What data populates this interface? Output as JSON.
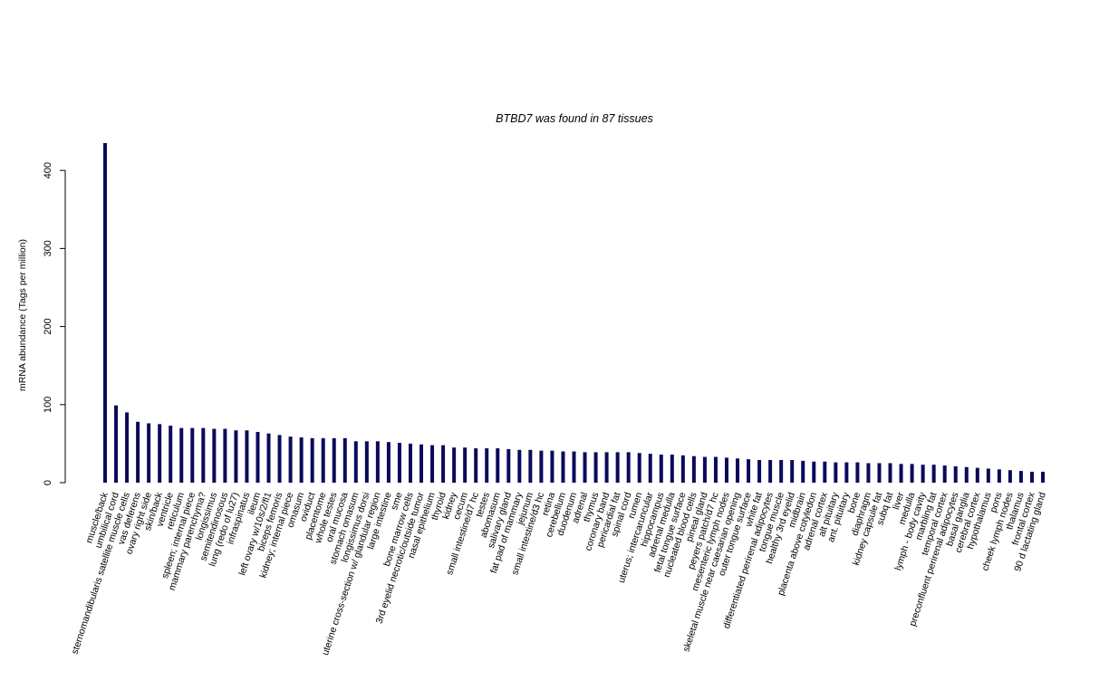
{
  "chart_data": {
    "type": "bar",
    "title": "BTBD7  was found in  87  tissues",
    "xlabel": "",
    "ylabel": "mRNA abundance (Tags per million)",
    "ylim": [
      0,
      435
    ],
    "yticks": [
      0,
      100,
      200,
      300,
      400
    ],
    "grid": false,
    "legend": "none",
    "bar_color": "#0a0a5c",
    "categories": [
      "muscle/back",
      "umbilical cord",
      "sternomandibularis satellite muscle cells",
      "vas deferens",
      "ovary right side",
      "skin/back",
      "ventricle",
      "reticulum",
      "spleen; internal piece",
      "mammary parenchyma?",
      "longissimus",
      "semitendinosous",
      "lung (redo of lu27)",
      "infraspinatus",
      "ileum",
      "left ovary w/10s/2/fl1",
      "biceps femoris",
      "kidney; internal piece",
      "omasum",
      "oviduct",
      "placentome",
      "whole testes",
      "oral mucosa",
      "stomach omasum",
      "longissimus dorsi",
      "uterine cross-section w/ glandular region",
      "large intestine",
      "sme",
      "bone marrow cells",
      "3rd eyelid necrotic/outside tumor",
      "nasal epithelium",
      "thyroid",
      "kidney",
      "cecum",
      "small intestine/d7 hc",
      "testes",
      "abomasum",
      "salivary gland",
      "fat pad of mammary",
      "jejunum",
      "small intestine/d3 hc",
      "retina",
      "cerebellum",
      "duodenum",
      "adrenal",
      "thymus",
      "coronary band",
      "pericardial fat",
      "spinal cord",
      "rumen",
      "uterus; intercaruncular",
      "hippocampus",
      "adrenal medulla",
      "fetal tongue surface",
      "nucleated blood cells",
      "pineal gland",
      "peyers patch/d7 hc",
      "mesenteric lymph nodes",
      "skeletal muscle near caesarian opening",
      "outer tongue surface",
      "white fat",
      "differentiated perirenal adipocytes",
      "tongue muscle",
      "healthy 3rd eyelid",
      "midbrain",
      "placenta above cotyledon",
      "adrenal cortex",
      "alt pituitary",
      "ant. pituitary",
      "bone",
      "diaphragm",
      "kidney capsule fat",
      "subq fat",
      "liver",
      "medulla",
      "lymph - body cavity",
      "marbling fat",
      "temporal cortex",
      "preconfluent perirenal adipocytes",
      "basal ganglia",
      "cerebral cortex",
      "hypothalamus",
      "pons",
      "cheek lymph nodes",
      "thalamus",
      "frontal cortex",
      "90 d lactating gland"
    ],
    "values": [
      435,
      99,
      90,
      78,
      76,
      75,
      73,
      70,
      70,
      70,
      69,
      69,
      67,
      67,
      65,
      63,
      61,
      59,
      58,
      57,
      57,
      57,
      57,
      53,
      53,
      53,
      52,
      51,
      50,
      49,
      48,
      48,
      45,
      45,
      44,
      44,
      44,
      43,
      42,
      42,
      41,
      41,
      40,
      40,
      39,
      39,
      39,
      39,
      39,
      38,
      37,
      36,
      36,
      35,
      34,
      33,
      33,
      32,
      31,
      30,
      29,
      29,
      29,
      29,
      28,
      27,
      27,
      26,
      26,
      26,
      25,
      25,
      25,
      24,
      24,
      23,
      23,
      22,
      21,
      20,
      19,
      18,
      17,
      16,
      15,
      14,
      14
    ]
  }
}
